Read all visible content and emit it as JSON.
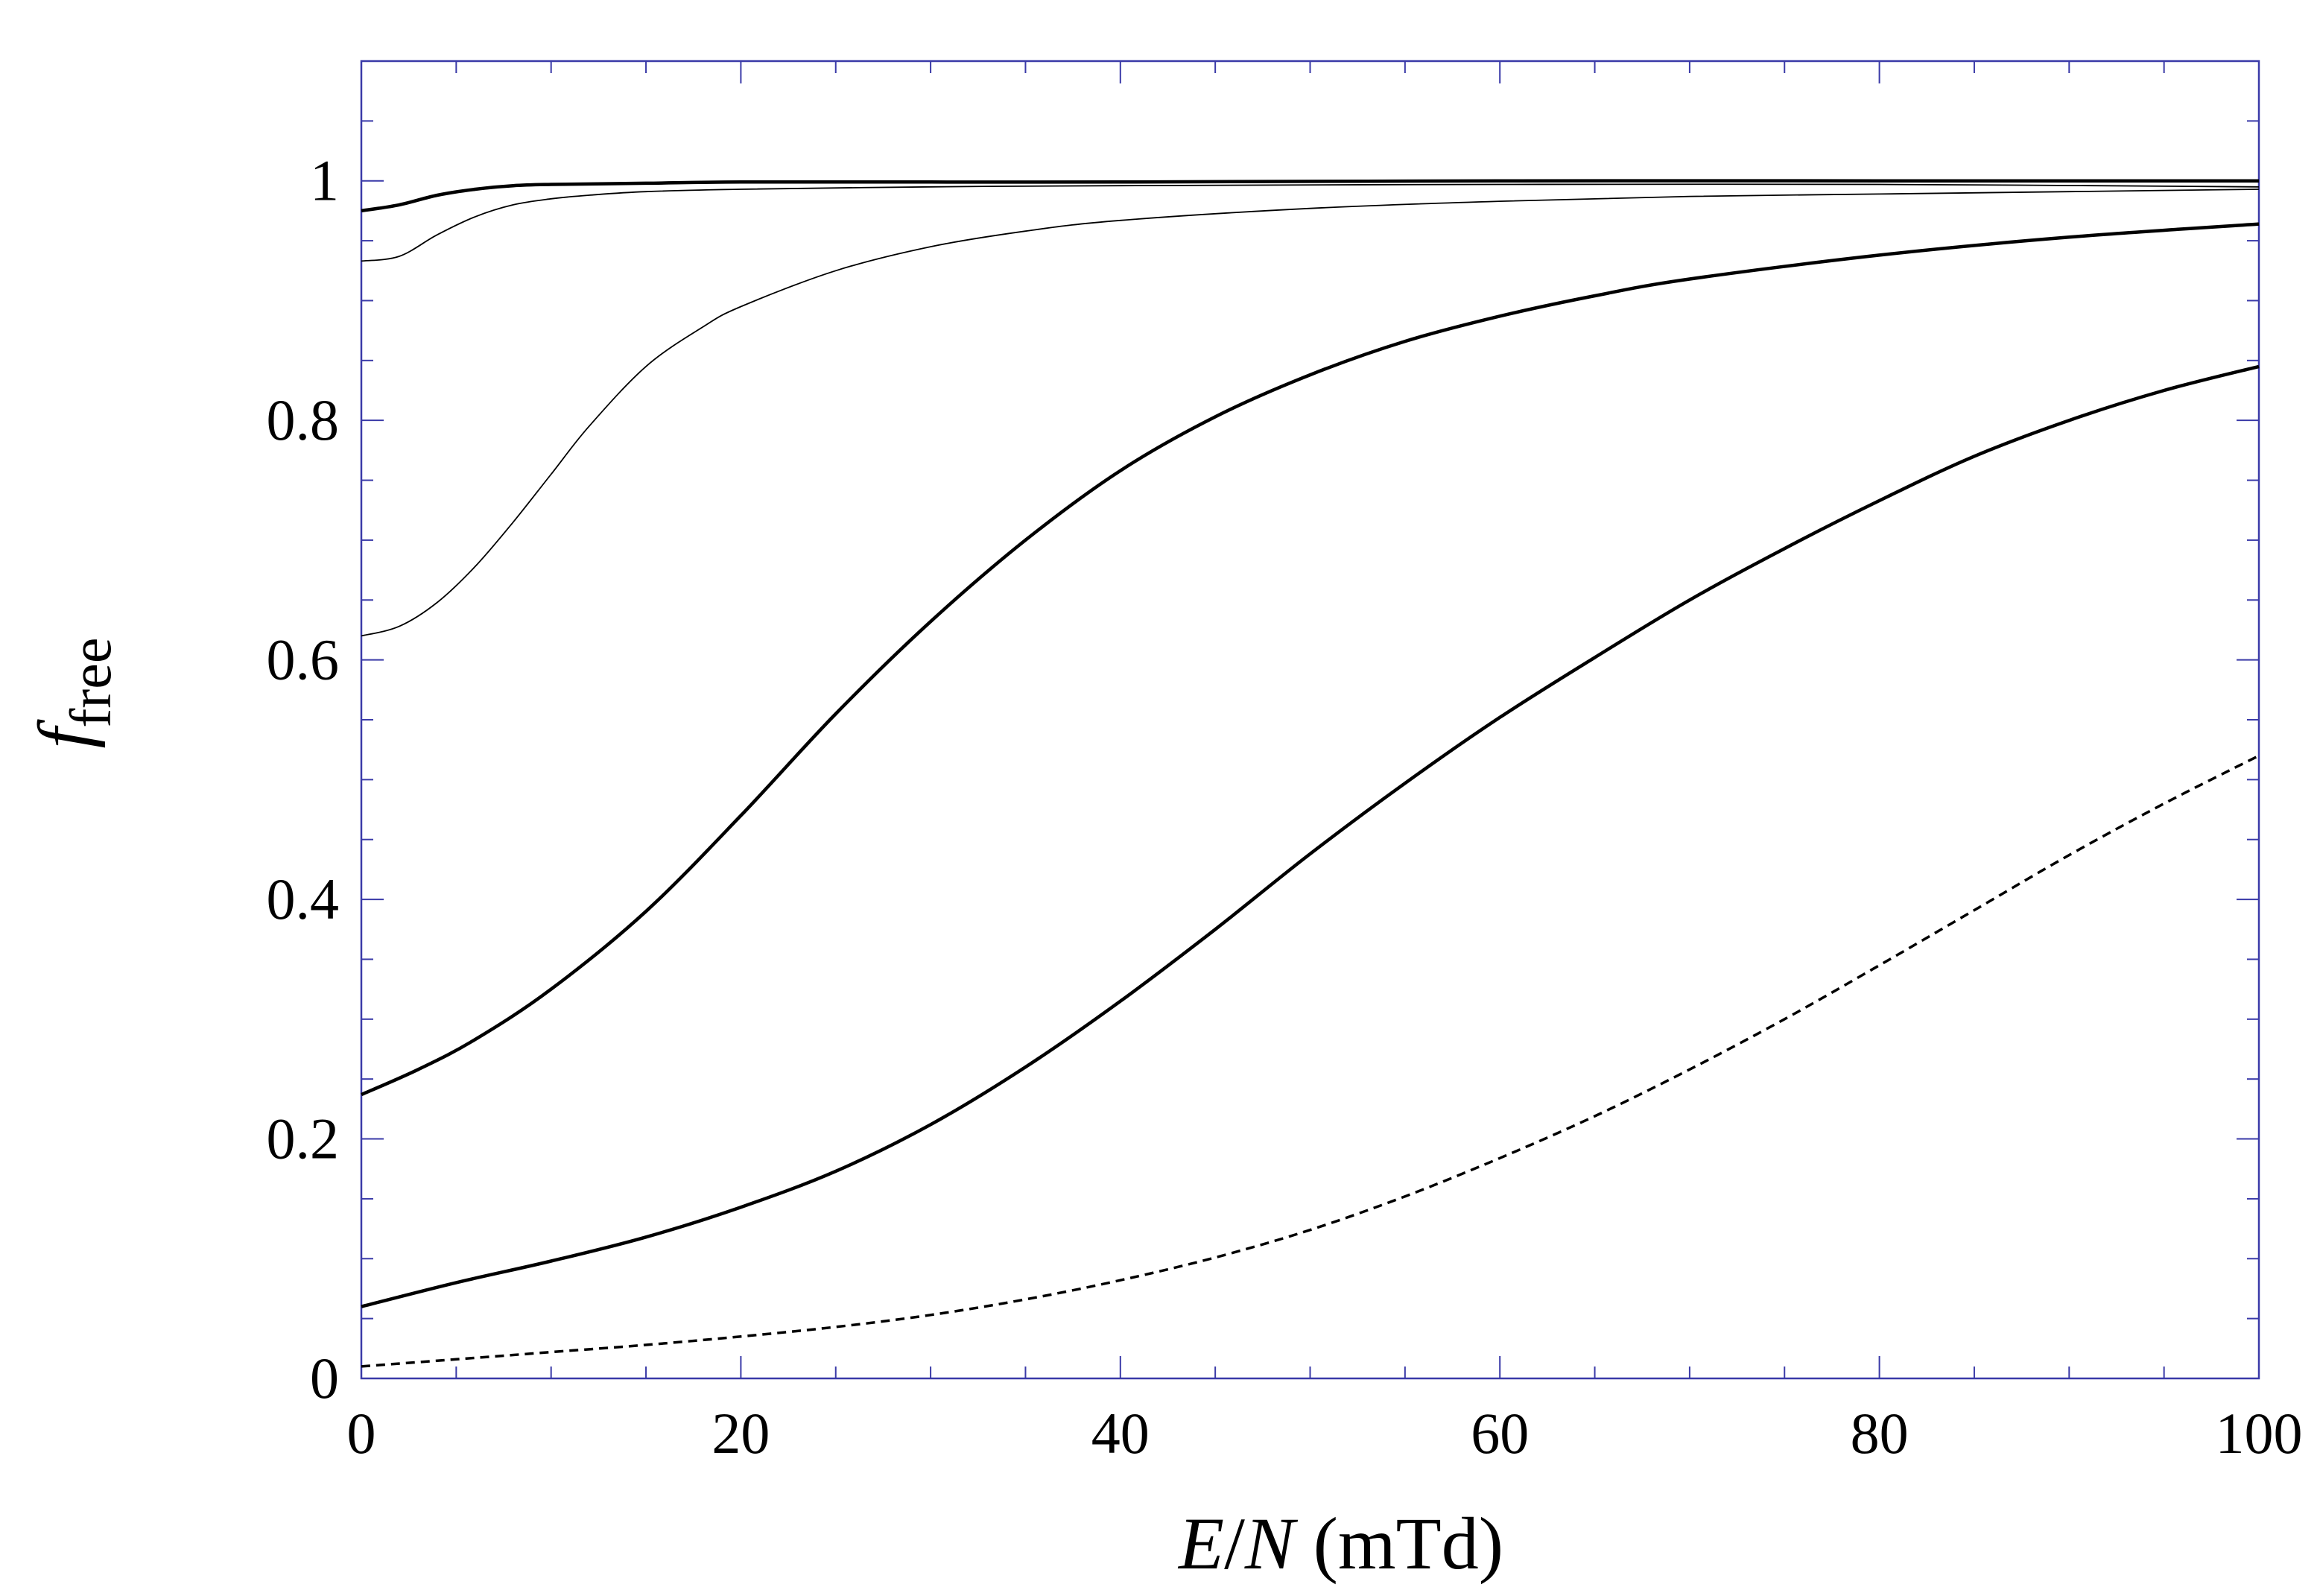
{
  "chart_data": {
    "type": "line",
    "xlabel": {
      "italic_1": "E",
      "sep": "/",
      "italic_2": "N",
      "rest": " (mTd)"
    },
    "ylabel": {
      "symbol": "f",
      "subscript": "free"
    },
    "xlim": [
      0,
      100
    ],
    "ylim": [
      0,
      1.1
    ],
    "x_ticks": [
      0,
      20,
      40,
      60,
      80,
      100
    ],
    "x_tick_labels": [
      "0",
      "20",
      "40",
      "60",
      "80",
      "100"
    ],
    "y_ticks": [
      0,
      0.2,
      0.4,
      0.6,
      0.8,
      1
    ],
    "y_tick_labels": [
      "0",
      "0.2",
      "0.4",
      "0.6",
      "0.8",
      "1"
    ],
    "grid": false,
    "colors": {
      "line": "#000000",
      "tick": "#3a3aa8",
      "frame": "#3a3aa8"
    },
    "series": [
      {
        "style": "thick",
        "x": [
          0,
          2,
          4,
          6,
          8,
          10,
          15,
          20,
          30,
          40,
          60,
          80,
          100
        ],
        "y": [
          0.975,
          0.98,
          0.988,
          0.993,
          0.996,
          0.997,
          0.998,
          0.999,
          0.999,
          0.999,
          1.0,
          1.0,
          1.0
        ]
      },
      {
        "style": "thin",
        "x": [
          0,
          2,
          4,
          6,
          8,
          10,
          12,
          15,
          20,
          30,
          40,
          60,
          80,
          100
        ],
        "y": [
          0.933,
          0.937,
          0.955,
          0.97,
          0.98,
          0.985,
          0.988,
          0.991,
          0.993,
          0.995,
          0.996,
          0.997,
          0.997,
          0.995
        ]
      },
      {
        "style": "thin",
        "x": [
          0,
          2,
          4,
          6,
          8,
          10,
          12,
          15,
          18,
          20,
          25,
          30,
          35,
          40,
          50,
          60,
          70,
          80,
          90,
          100
        ],
        "y": [
          0.62,
          0.628,
          0.648,
          0.678,
          0.715,
          0.755,
          0.795,
          0.845,
          0.878,
          0.895,
          0.925,
          0.945,
          0.958,
          0.967,
          0.977,
          0.983,
          0.987,
          0.989,
          0.991,
          0.993
        ]
      },
      {
        "style": "thick",
        "x": [
          0,
          3,
          6,
          10,
          15,
          20,
          25,
          30,
          35,
          40,
          45,
          50,
          55,
          60,
          65,
          70,
          80,
          90,
          100
        ],
        "y": [
          0.237,
          0.258,
          0.283,
          0.325,
          0.39,
          0.47,
          0.555,
          0.632,
          0.7,
          0.758,
          0.803,
          0.838,
          0.866,
          0.887,
          0.904,
          0.918,
          0.938,
          0.953,
          0.964
        ]
      },
      {
        "style": "thick",
        "x": [
          0,
          5,
          10,
          15,
          20,
          25,
          30,
          35,
          40,
          45,
          50,
          55,
          60,
          65,
          70,
          75,
          80,
          85,
          90,
          95,
          100
        ],
        "y": [
          0.06,
          0.08,
          0.098,
          0.118,
          0.143,
          0.173,
          0.212,
          0.26,
          0.315,
          0.375,
          0.438,
          0.497,
          0.552,
          0.602,
          0.65,
          0.693,
          0.733,
          0.77,
          0.8,
          0.825,
          0.845
        ]
      },
      {
        "style": "dashed",
        "x": [
          0,
          5,
          10,
          15,
          20,
          25,
          30,
          35,
          40,
          45,
          50,
          55,
          60,
          65,
          70,
          75,
          80,
          85,
          90,
          95,
          100
        ],
        "y": [
          0.01,
          0.016,
          0.022,
          0.028,
          0.035,
          0.043,
          0.053,
          0.066,
          0.082,
          0.101,
          0.124,
          0.152,
          0.184,
          0.219,
          0.258,
          0.3,
          0.345,
          0.391,
          0.437,
          0.48,
          0.52
        ]
      }
    ]
  }
}
